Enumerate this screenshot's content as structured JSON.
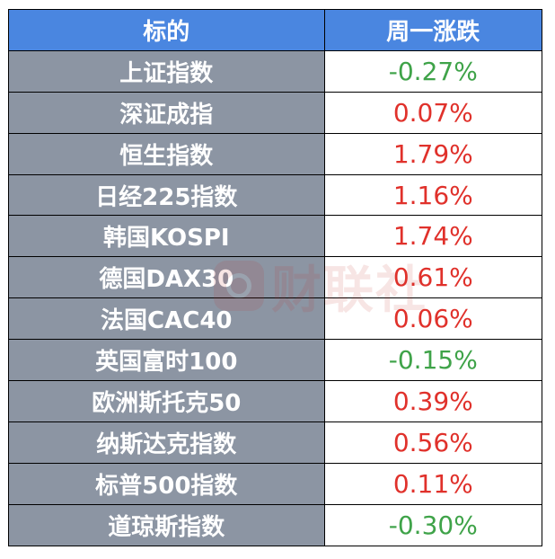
{
  "header": {
    "col1": "标的",
    "col2": "周一涨跌"
  },
  "rows": [
    {
      "name": "上证指数",
      "change": "-0.27%",
      "dir": "down"
    },
    {
      "name": "深证成指",
      "change": "0.07%",
      "dir": "up"
    },
    {
      "name": "恒生指数",
      "change": "1.79%",
      "dir": "up"
    },
    {
      "name": "日经225指数",
      "change": "1.16%",
      "dir": "up"
    },
    {
      "name": "韩国KOSPI",
      "change": "1.74%",
      "dir": "up"
    },
    {
      "name": "德国DAX30",
      "change": "0.61%",
      "dir": "up"
    },
    {
      "name": "法国CAC40",
      "change": "0.06%",
      "dir": "up"
    },
    {
      "name": "英国富时100",
      "change": "-0.15%",
      "dir": "down"
    },
    {
      "name": "欧洲斯托克50",
      "change": "0.39%",
      "dir": "up"
    },
    {
      "name": "纳斯达克指数",
      "change": "0.56%",
      "dir": "up"
    },
    {
      "name": "标普500指数",
      "change": "0.11%",
      "dir": "up"
    },
    {
      "name": "道琼斯指数",
      "change": "-0.30%",
      "dir": "down"
    }
  ],
  "watermark": {
    "text": "财联社"
  },
  "colors": {
    "header_bg": "#4a86e0",
    "name_bg": "#8c95a3",
    "up": "#e0312b",
    "down": "#3fa349"
  }
}
